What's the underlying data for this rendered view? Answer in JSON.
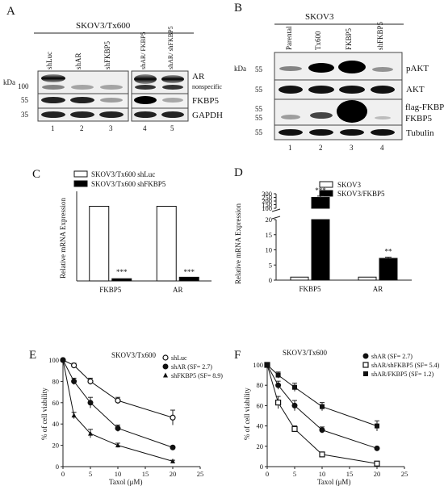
{
  "figure": {
    "panels": {
      "A": {
        "letter": "A",
        "title": "SKOV3/Tx600",
        "kda_label": "kDa",
        "lanes": [
          "shLuc",
          "shAR",
          "shFKBP5",
          "shAR/ FKBP5",
          "shAR/ shFKBP5"
        ],
        "lane_numbers": [
          "1",
          "2",
          "3",
          "4",
          "5"
        ],
        "markers": [
          "100",
          "55",
          "35"
        ],
        "bands": [
          "AR",
          "nonspecific",
          "FKBP5",
          "GAPDH"
        ]
      },
      "B": {
        "letter": "B",
        "title": "SKOV3",
        "kda_label": "kDa",
        "lanes": [
          "Parental",
          "Tx600",
          "FKBP5",
          "shFKBP5"
        ],
        "lane_numbers": [
          "1",
          "2",
          "3",
          "4"
        ],
        "markers": [
          "55",
          "55",
          "55",
          "55",
          "55"
        ],
        "bands": [
          "pAKT",
          "AKT",
          "flag-FKBP5",
          "FKBP5",
          "Tubulin"
        ]
      },
      "C": {
        "letter": "C",
        "legend": [
          "SKOV3/Tx600 shLuc",
          "SKOV3/Tx600 shFKBP5"
        ],
        "ylabel": "Relative mRNA Expression",
        "stars": [
          "***",
          "***"
        ]
      },
      "D": {
        "letter": "D",
        "legend": [
          "SKOV3",
          "SKOV3/FKBP5"
        ],
        "ylabel": "Relative mRNA Expression",
        "stars": [
          "***",
          "**"
        ]
      },
      "E": {
        "letter": "E",
        "title": "SKOV3/Tx600",
        "ylabel": "% of cell viability",
        "xlabel": "Taxol (μM)"
      },
      "F": {
        "letter": "F",
        "title": "SKOV3/Tx600",
        "ylabel": "% of cell viability",
        "xlabel": "Taxol (μM)"
      }
    }
  },
  "chart_data": [
    {
      "type": "bar",
      "panel": "C",
      "categories": [
        "FKBP5",
        "AR"
      ],
      "series": [
        {
          "name": "SKOV3/Tx600 shLuc",
          "values": [
            1.0,
            1.0
          ],
          "color": "#ffffff"
        },
        {
          "name": "SKOV3/Tx600 shFKBP5",
          "values": [
            0.03,
            0.05
          ],
          "color": "#000000"
        }
      ],
      "ylim": [
        0,
        1.2
      ]
    },
    {
      "type": "bar",
      "panel": "D",
      "categories": [
        "FKBP5",
        "AR"
      ],
      "series": [
        {
          "name": "SKOV3",
          "values": [
            1.0,
            1.0
          ],
          "color": "#ffffff"
        },
        {
          "name": "SKOV3/FKBP5",
          "values": [
            250,
            7.2
          ],
          "errors": [
            18,
            0.4
          ],
          "color": "#000000"
        }
      ],
      "yticks_lower": [
        "0",
        "5",
        "10",
        "15",
        "20"
      ],
      "yticks_upper": [
        "100",
        "150",
        "200",
        "250",
        "300"
      ],
      "axis_break": true
    },
    {
      "type": "line",
      "panel": "E",
      "x": [
        0,
        2,
        5,
        10,
        20
      ],
      "xticks": [
        "0",
        "5",
        "10",
        "15",
        "20",
        "25"
      ],
      "yticks": [
        "0",
        "20",
        "40",
        "60",
        "80",
        "100"
      ],
      "xlim": [
        0,
        25
      ],
      "ylim": [
        0,
        100
      ],
      "series": [
        {
          "name": "shLuc",
          "marker": "open-circle",
          "values": [
            100,
            95,
            80,
            62,
            46
          ],
          "errors": [
            0,
            2,
            3,
            3,
            7
          ]
        },
        {
          "name": "shAR",
          "sf": "(SF= 2.7)",
          "marker": "filled-circle",
          "values": [
            100,
            80,
            60,
            36,
            18
          ],
          "errors": [
            0,
            3,
            5,
            3,
            1
          ]
        },
        {
          "name": "shFKBP5",
          "sf": "(SF= 8.9)",
          "marker": "filled-triangle",
          "values": [
            100,
            48,
            31,
            20,
            5
          ],
          "errors": [
            0,
            3,
            4,
            2,
            1
          ]
        }
      ]
    },
    {
      "type": "line",
      "panel": "F",
      "x": [
        0,
        2,
        5,
        10,
        20
      ],
      "xticks": [
        "0",
        "5",
        "10",
        "15",
        "20",
        "25"
      ],
      "yticks": [
        "0",
        "20",
        "40",
        "60",
        "80",
        "100"
      ],
      "xlim": [
        0,
        25
      ],
      "ylim": [
        0,
        100
      ],
      "series": [
        {
          "name": "shAR",
          "sf": "(SF= 2.7)",
          "marker": "filled-circle",
          "values": [
            100,
            80,
            60,
            36,
            18
          ],
          "errors": [
            0,
            4,
            5,
            3,
            1
          ]
        },
        {
          "name": "shAR/shFKBP5",
          "sf": "(SF= 5.4)",
          "marker": "open-square",
          "values": [
            100,
            63,
            37,
            12,
            3
          ],
          "errors": [
            0,
            6,
            3,
            2,
            1
          ]
        },
        {
          "name": "shAR/FKBP5",
          "sf": "(SF= 1.2)",
          "marker": "filled-square",
          "values": [
            100,
            90,
            78,
            59,
            40
          ],
          "errors": [
            0,
            3,
            4,
            4,
            5
          ]
        }
      ]
    }
  ]
}
